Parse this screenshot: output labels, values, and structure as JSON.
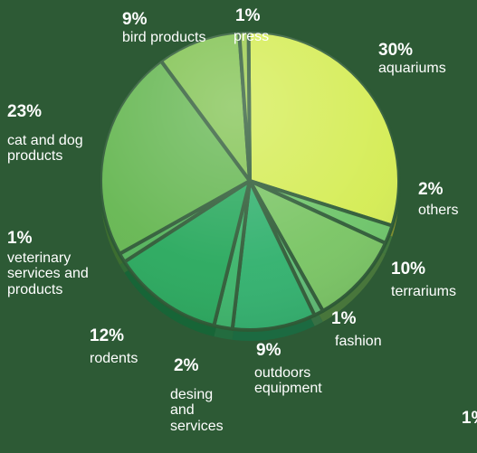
{
  "chart_data": {
    "type": "pie",
    "slices": [
      {
        "label": "aquariums",
        "value": 30,
        "value_label": "30%",
        "color": "#d4ec52"
      },
      {
        "label": "others",
        "value": 2,
        "value_label": "2%",
        "color": "#6cc468"
      },
      {
        "label": "terrariums",
        "value": 10,
        "value_label": "10%",
        "color": "#78c462"
      },
      {
        "label": "fashion",
        "value": 1,
        "value_label": "1%",
        "color": "#5cba72"
      },
      {
        "label": "outdoors equipment",
        "value": 9,
        "value_label": "9%",
        "color": "#2fb06c"
      },
      {
        "label": "desing and services",
        "value": 2,
        "value_label": "2%",
        "color": "#3ab469"
      },
      {
        "label": "rodents",
        "value": 12,
        "value_label": "12%",
        "color": "#27a85c"
      },
      {
        "label": "veterinary services and products",
        "value": 1,
        "value_label": "1%",
        "color": "#52b25a"
      },
      {
        "label": "cat and dog products",
        "value": 23,
        "value_label": "23%",
        "color": "#64b650"
      },
      {
        "label": "bird products",
        "value": 9,
        "value_label": "9%",
        "color": "#80c250"
      },
      {
        "label": "press",
        "value": 1,
        "value_label": "1%",
        "color": "#9ccc4c"
      }
    ],
    "stray_label": "1%"
  }
}
